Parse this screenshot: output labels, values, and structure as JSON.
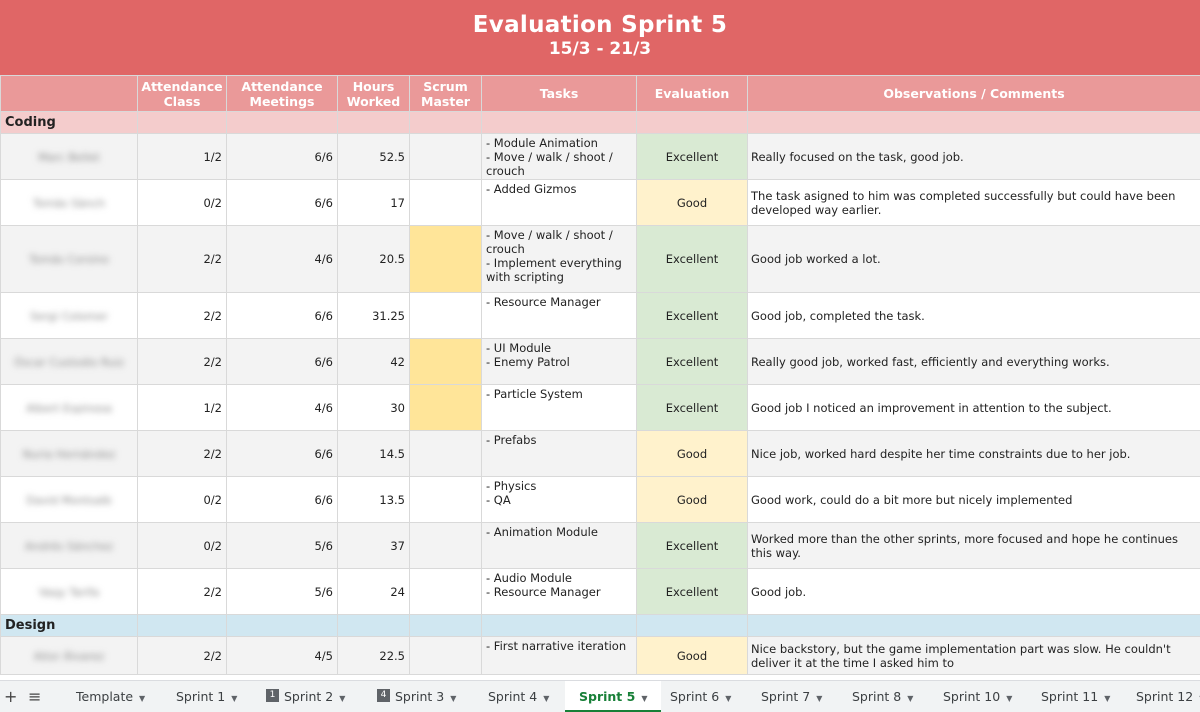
{
  "banner": {
    "title": "Evaluation Sprint 5",
    "dates": "15/3 - 21/3"
  },
  "columns": {
    "attendance_class": "Attendance Class",
    "attendance_meetings": "Attendance Meetings",
    "hours_worked": "Hours Worked",
    "scrum_master": "Scrum Master",
    "tasks": "Tasks",
    "evaluation": "Evaluation",
    "observations": "Observations / Comments"
  },
  "sections": {
    "coding": "Coding",
    "design": "Design"
  },
  "rows": [
    {
      "name": "Marc Bellet",
      "class": "1/2",
      "meetings": "6/6",
      "hours": "52.5",
      "tasks": "- Module Animation\n- Move / walk / shoot / crouch",
      "evaluation": "Excellent",
      "comment": "Really focused on the task, good job."
    },
    {
      "name": "Tomàs Sànch",
      "class": "0/2",
      "meetings": "6/6",
      "hours": "17",
      "tasks": "- Added Gizmos",
      "evaluation": "Good",
      "comment": "The task asigned to him was completed successfully but could have been developed way earlier."
    },
    {
      "name": "Tomás Corsino",
      "class": "2/2",
      "meetings": "4/6",
      "hours": "20.5",
      "tasks": "- Move / walk / shoot / crouch\n- Implement everything with scripting",
      "evaluation": "Excellent",
      "comment": "Good job worked a lot."
    },
    {
      "name": "Sergi Colomer",
      "class": "2/2",
      "meetings": "6/6",
      "hours": "31.25",
      "tasks": "- Resource Manager",
      "evaluation": "Excellent",
      "comment": "Good job, completed the task."
    },
    {
      "name": "Óscar Custodio Ruiz",
      "class": "2/2",
      "meetings": "6/6",
      "hours": "42",
      "tasks": "- UI Module\n- Enemy Patrol",
      "evaluation": "Excellent",
      "comment": "Really good job, worked fast, efficiently and everything works."
    },
    {
      "name": "Albert Espinosa",
      "class": "1/2",
      "meetings": "4/6",
      "hours": "30",
      "tasks": "- Particle System",
      "evaluation": "Excellent",
      "comment": "Good job I noticed an improvement in attention to the subject."
    },
    {
      "name": "Nuria Hernández",
      "class": "2/2",
      "meetings": "6/6",
      "hours": "14.5",
      "tasks": "- Prefabs",
      "evaluation": "Good",
      "comment": "Nice job, worked hard despite her time constraints due to her job."
    },
    {
      "name": "David Montsalb",
      "class": "0/2",
      "meetings": "6/6",
      "hours": "13.5",
      "tasks": "- Physics\n- QA",
      "evaluation": "Good",
      "comment": "Good work, could do a bit more but nicely implemented"
    },
    {
      "name": "Andrés Sánchez",
      "class": "0/2",
      "meetings": "5/6",
      "hours": "37",
      "tasks": "- Animation Module",
      "evaluation": "Excellent",
      "comment": "Worked more than the other sprints, more focused and hope he continues this way."
    },
    {
      "name": "Vaqy Tarifa",
      "class": "2/2",
      "meetings": "5/6",
      "hours": "24",
      "tasks": "- Audio Module\n- Resource Manager",
      "evaluation": "Excellent",
      "comment": "Good job."
    },
    {
      "name": "Aitor Álvarez",
      "class": "2/2",
      "meetings": "4/5",
      "hours": "22.5",
      "tasks": "- First narrative iteration",
      "evaluation": "Good",
      "comment": "Nice backstory, but the game implementation part was slow. He couldn't deliver it at the time I asked him to"
    }
  ],
  "tabs": {
    "template": "Template",
    "s1": "Sprint 1",
    "s2": "Sprint 2",
    "s3": "Sprint 3",
    "s4": "Sprint 4",
    "s5": "Sprint 5",
    "s6": "Sprint 6",
    "s7": "Sprint 7",
    "s8": "Sprint 8",
    "s10": "Sprint 10",
    "s11": "Sprint 11",
    "s12": "Sprint 12",
    "badge2": "1",
    "badge3": "4"
  },
  "colors": {
    "banner": "#e06666",
    "header": "#ea9999",
    "coding_section": "#f4cccc",
    "design_section": "#d0e7f1",
    "excellent": "#d9ead3",
    "good": "#fff2cc",
    "scrum_master": "#ffe599",
    "active_tab": "#188038"
  }
}
